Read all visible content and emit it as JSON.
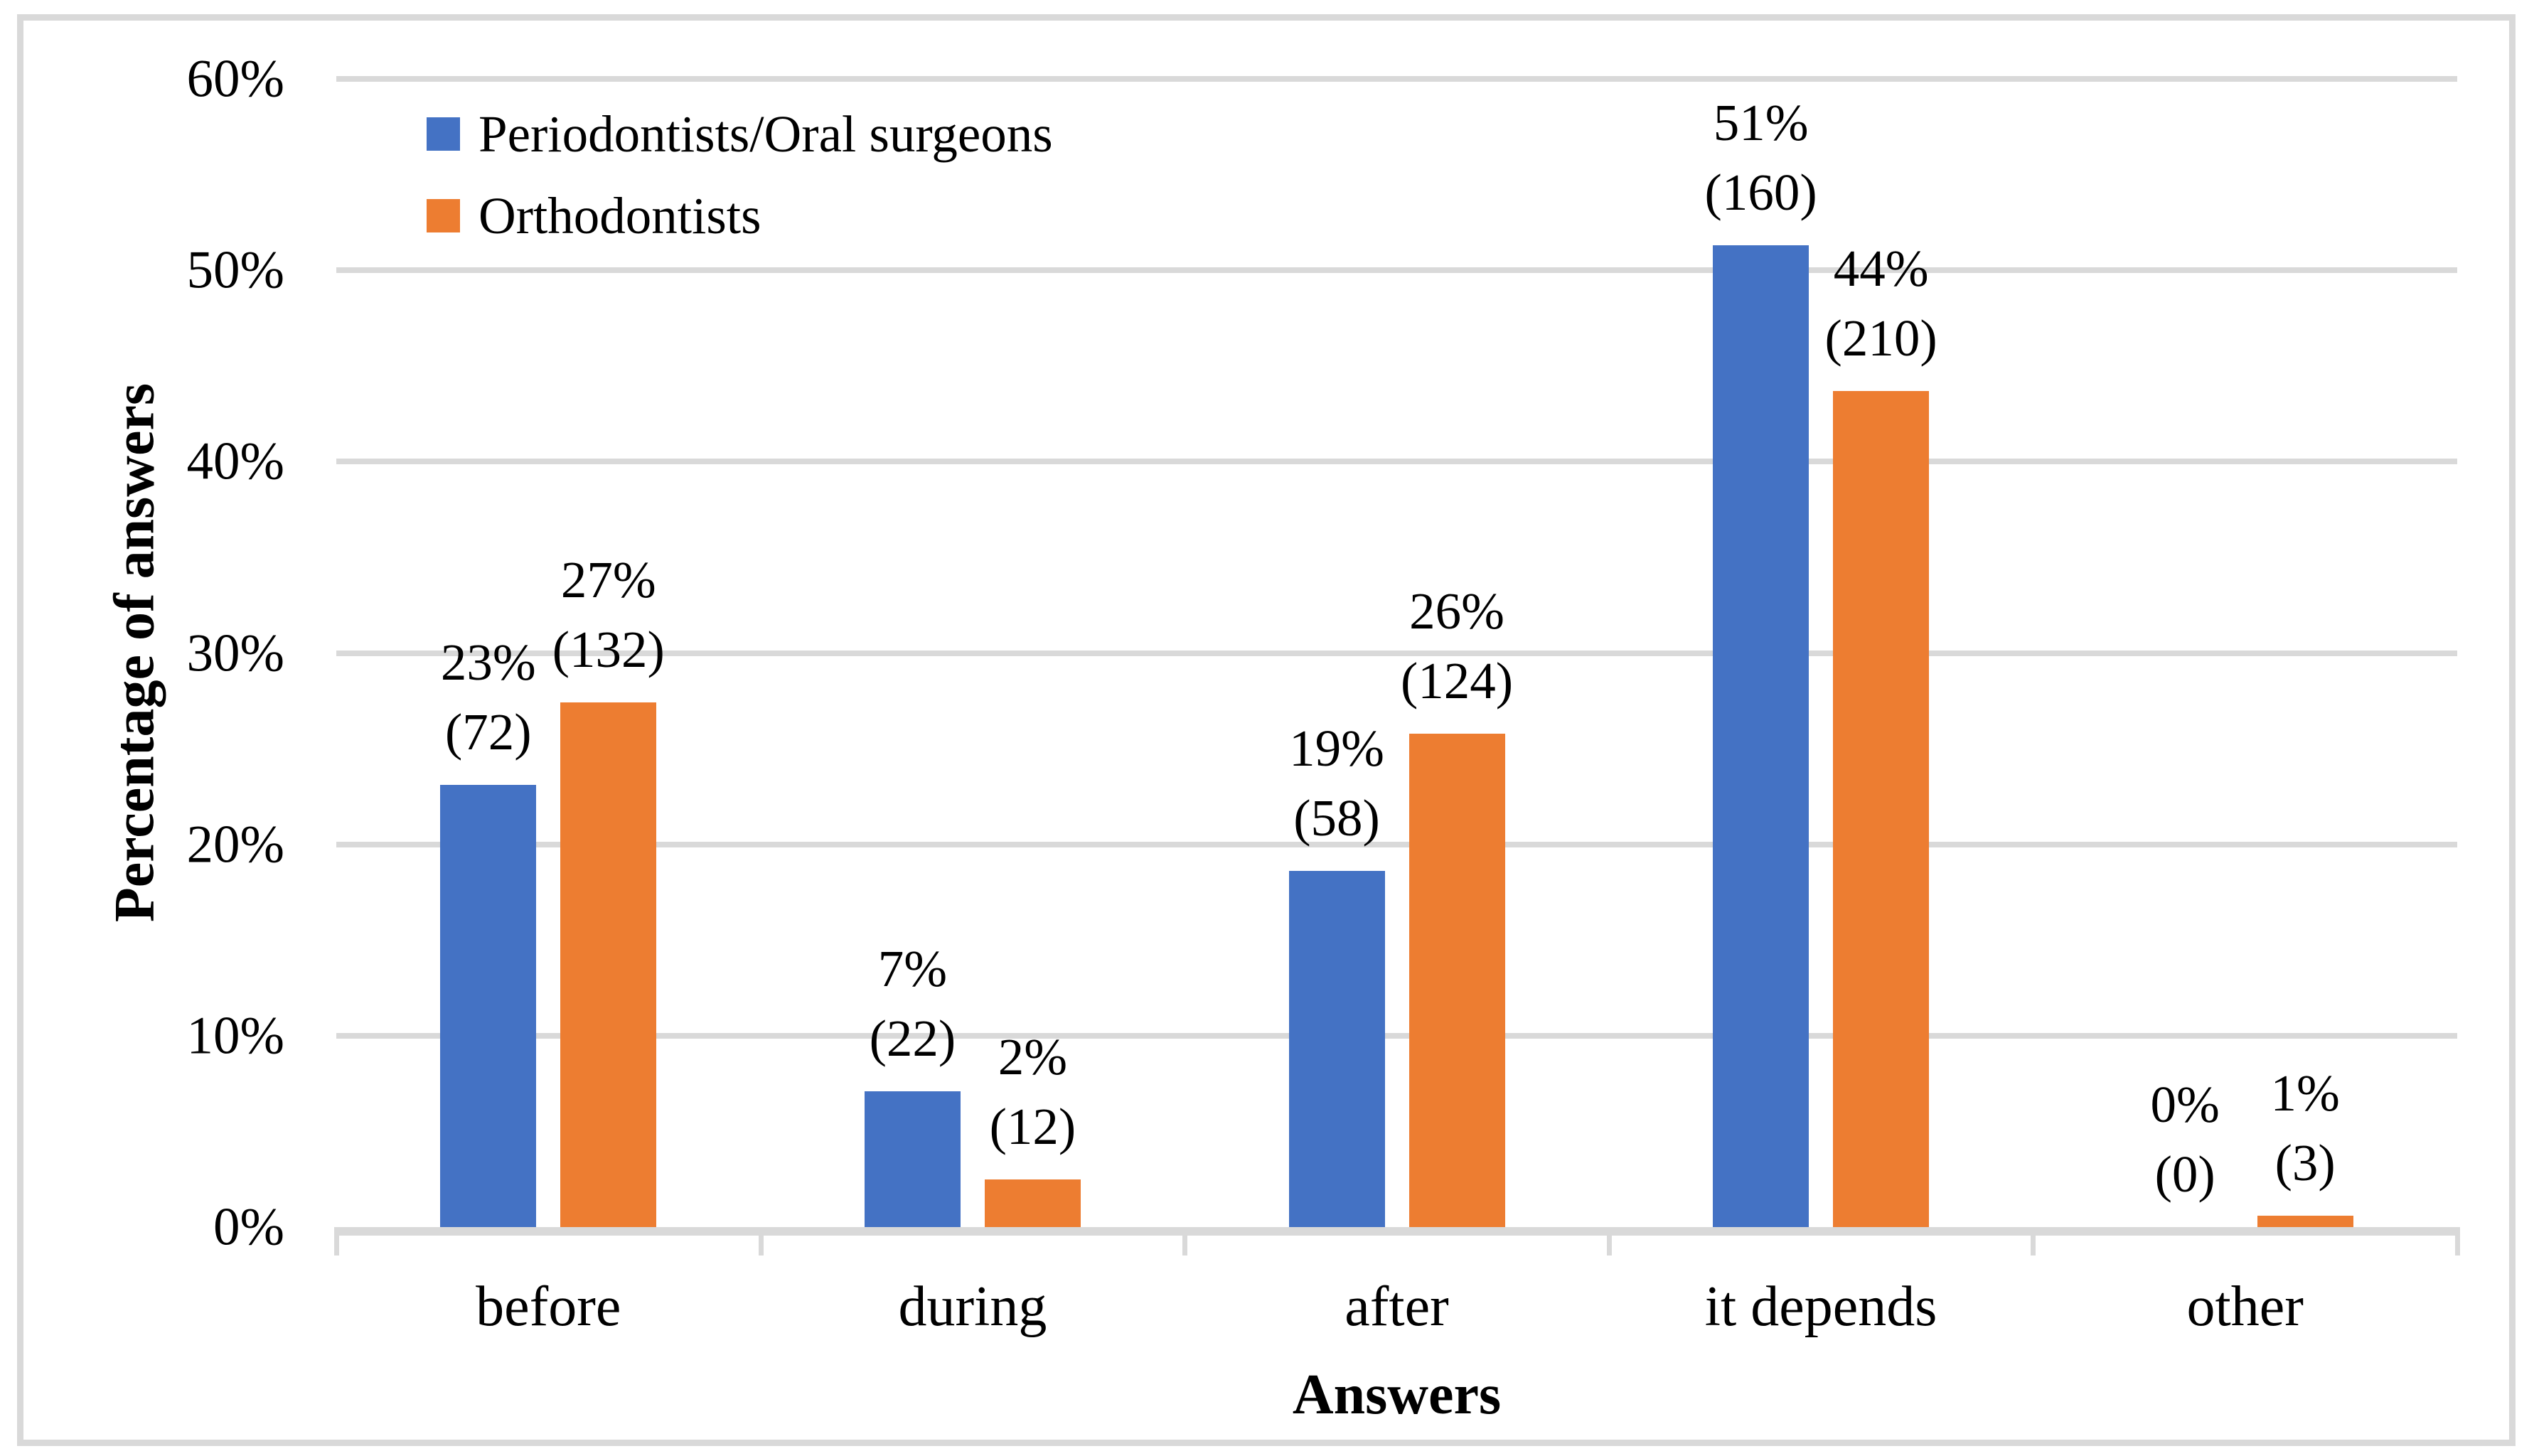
{
  "figure": {
    "background": "#ffffff"
  },
  "colors": {
    "series1": "#4472C4",
    "series2": "#ED7D31",
    "gridline": "#d9d9d9",
    "axis_line": "#d9d9d9",
    "outer_border": "#d9d9d9",
    "text": "#000000"
  },
  "legend": {
    "items": [
      {
        "label": "Periodontists/Oral surgeons",
        "color": "#4472C4"
      },
      {
        "label": "Orthodontists",
        "color": "#ED7D31"
      }
    ]
  },
  "chart_data": {
    "type": "bar",
    "title": "",
    "xlabel": "Answers",
    "ylabel": "Percentage of answers",
    "categories": [
      "before",
      "during",
      "after",
      "it depends",
      "other"
    ],
    "y_axis": {
      "min": 0,
      "max": 60,
      "step": 10,
      "tick_labels_top_to_bottom": [
        "60%",
        "50%",
        "40%",
        "30%",
        "20%",
        "10%",
        "0%"
      ],
      "grid": true
    },
    "legend_position": "top-left-inside",
    "series": [
      {
        "name": "Periodontists/Oral surgeons",
        "color": "#4472C4",
        "values_pct": [
          23.1,
          7.1,
          18.6,
          51.3,
          0
        ],
        "counts": [
          72,
          22,
          58,
          160,
          0
        ],
        "pct_labels": [
          "23%",
          "7%",
          "19%",
          "51%",
          "0%"
        ],
        "count_labels": [
          "(72)",
          "(22)",
          "(58)",
          "(160)",
          "(0)"
        ]
      },
      {
        "name": "Orthodontists",
        "color": "#ED7D31",
        "values_pct": [
          27.4,
          2.5,
          25.8,
          43.7,
          0.6
        ],
        "counts": [
          132,
          12,
          124,
          210,
          3
        ],
        "pct_labels": [
          "27%",
          "2%",
          "26%",
          "44%",
          "1%"
        ],
        "count_labels": [
          "(132)",
          "(12)",
          "(124)",
          "(210)",
          "(3)"
        ]
      }
    ]
  }
}
